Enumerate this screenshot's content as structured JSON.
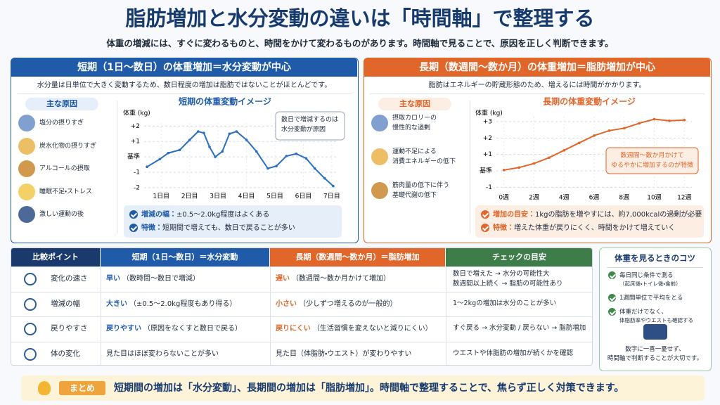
{
  "title": "脂肪増加と水分変動の違いは「時間軸」で整理する",
  "subtitle": "体重の増減には、すぐに変わるものと、時間をかけて変わるものがあります。時間軸で見ることで、原因を正しく判断できます。",
  "short_panel": {
    "header": "短期（1日〜数日）の体重増加＝水分変動が中心",
    "description": "水分量は日単位で大きく変動するため、数日程度の増加は脂肪ではないことがほとんどです。",
    "causes_title": "主な原因",
    "causes": [
      [
        "塩分の摂りすぎ"
      ],
      [
        "炭水化物の摂りすぎ"
      ],
      [
        "アルコールの摂取"
      ],
      [
        "睡眠不足・ストレス"
      ],
      [
        "激しい運動の後"
      ]
    ],
    "notes": [
      {
        "label": "増減の幅：",
        "text": "±0.5〜2.0kg程度はよくある"
      },
      {
        "label": "特徴：",
        "text": "短期間で増えても、数日で戻ることが多い"
      }
    ]
  },
  "long_panel": {
    "header": "長期（数週間〜数か月）の体重増加＝脂肪増加が中心",
    "description": "脂肪はエネルギーの貯蔵形態のため、増えるには時間がかかります。",
    "causes_title": "主な原因",
    "causes": [
      [
        "摂取カロリーの",
        "慢性的な過剰"
      ],
      [
        "運動不足による",
        "消費エネルギーの低下"
      ],
      [
        "筋肉量の低下に伴う",
        "基礎代謝の低下"
      ]
    ],
    "notes": [
      {
        "label": "増加の目安：",
        "text": "1kgの脂肪を増やすには、約7,000kcalの過剰が必要"
      },
      {
        "label": "特徴：",
        "text": "増えた体重が戻りにくく、時間をかけて増えていく"
      }
    ]
  },
  "chart_data": [
    {
      "type": "line",
      "title": "短期の体重変動イメージ",
      "ylabel": "体重 (kg)",
      "color": "#2a6fc0",
      "x": [
        0.5,
        0.95,
        1.25,
        1.65,
        2.0,
        2.3,
        2.5,
        2.7,
        2.9,
        3.15,
        3.4,
        3.65,
        4.0,
        4.35,
        4.75,
        5.05,
        5.4,
        5.75,
        6.1,
        6.4,
        6.75,
        7.05
      ],
      "values": [
        -0.65,
        -0.15,
        0.25,
        0.45,
        1.1,
        1.65,
        1.55,
        0.65,
        0.0,
        0.35,
        1.5,
        1.65,
        1.1,
        0.35,
        -0.75,
        -0.6,
        0.05,
        0.2,
        -0.1,
        -0.75,
        -1.4,
        -1.9
      ],
      "xlim": [
        0.4,
        7.2
      ],
      "ylim": [
        -2.1,
        2.2
      ],
      "xticks": [
        {
          "value": 1,
          "label": "1日目"
        },
        {
          "value": 2,
          "label": "2日目"
        },
        {
          "value": 3,
          "label": "3日目"
        },
        {
          "value": 4,
          "label": "4日目"
        },
        {
          "value": 5,
          "label": "5日目"
        },
        {
          "value": 6,
          "label": "6日目"
        },
        {
          "value": 7,
          "label": "7日目"
        }
      ],
      "yticks": [
        {
          "value": 2,
          "label": "+2"
        },
        {
          "value": 1,
          "label": "+1"
        },
        {
          "value": 0,
          "label": "基準"
        },
        -1,
        -2
      ],
      "grid": true,
      "callout": [
        "数日で増減するのは",
        "水分変動が原因"
      ]
    },
    {
      "type": "line",
      "title": "長期の体重変動イメージ",
      "ylabel": "体重 (kg)",
      "color": "#e0662a",
      "x": [
        0,
        1,
        2,
        3,
        4,
        5,
        6,
        7,
        8,
        9,
        10,
        11,
        12
      ],
      "values": [
        0.05,
        0.2,
        0.45,
        0.8,
        1.25,
        1.7,
        2.15,
        2.45,
        2.6,
        2.9,
        3.15,
        3.05,
        3.1
      ],
      "xlim": [
        -0.5,
        12.5
      ],
      "ylim": [
        -1.2,
        3.3
      ],
      "xticks": [
        {
          "value": 0,
          "label": "0週"
        },
        {
          "value": 2,
          "label": "2週"
        },
        {
          "value": 4,
          "label": "4週"
        },
        {
          "value": 6,
          "label": "6週"
        },
        {
          "value": 8,
          "label": "8週"
        },
        {
          "value": 10,
          "label": "10週"
        },
        {
          "value": 12,
          "label": "12週"
        }
      ],
      "yticks": [
        {
          "value": 3,
          "label": "+3"
        },
        {
          "value": 2,
          "label": "+2"
        },
        {
          "value": 1,
          "label": "+1"
        },
        {
          "value": 0,
          "label": "基準"
        },
        -1
      ],
      "grid": true,
      "callout": [
        "数週間〜数か月かけて",
        "ゆるやかに増加するのが特徴"
      ]
    }
  ],
  "table": {
    "headers": [
      "比較ポイント",
      "短期（1日〜数日）＝水分変動",
      "長期（数週間〜数か月）＝脂肪増加",
      "チェックの目安"
    ],
    "rows": [
      {
        "point": "変化の速さ",
        "short": {
          "em": "早い",
          "rest": "（数時間〜数日で増減）"
        },
        "long": {
          "em": "遅い",
          "rest": "（数週間〜数か月かけて増加）"
        },
        "check": [
          "数日で増えた → 水分の可能性大",
          "数週間以上続く → 脂肪の可能性あり"
        ]
      },
      {
        "point": "増減の幅",
        "short": {
          "em": "大きい",
          "rest": "（±0.5〜2.0kg程度もあり得る）"
        },
        "long": {
          "em": "小さい",
          "rest": "（少しずつ増えるのが一般的）"
        },
        "check": [
          "1〜2kgの増加は水分のことが多い"
        ]
      },
      {
        "point": "戻りやすさ",
        "short": {
          "em": "戻りやすい",
          "rest": "（原因をなくすと数日で戻る）"
        },
        "long": {
          "em": "戻りにくい",
          "rest": "（生活習慣を変えないと減りにくい）"
        },
        "check": [
          "すぐ戻る → 水分変動 / 戻らない → 脂肪増加"
        ]
      },
      {
        "point": "体の変化",
        "short": {
          "rest": "見た目はほぼ変わらないことが多い"
        },
        "long": {
          "rest": "見た目（体脂肪・ウエスト）が変わりやすい"
        },
        "check": [
          "ウエストや体脂肪の増加が続くかを確認"
        ]
      }
    ]
  },
  "tips": {
    "title": "体重を見るときのコツ",
    "items": [
      [
        "毎日同じ条件で測る",
        "（起床後・トイレ後・食前）"
      ],
      [
        "1週間単位で平均をとる"
      ],
      [
        "体重だけでなく、",
        "体脂肪率やウエストも確認する"
      ]
    ],
    "note": [
      "数字に一喜一憂せず、",
      "時間軸で判断することが大切です。"
    ]
  },
  "summary": {
    "label": "まとめ",
    "text": "短期間の増加は「水分変動」、長期間の増加は「脂肪増加」。時間軸で整理することで、焦らず正しく対策できます。"
  }
}
